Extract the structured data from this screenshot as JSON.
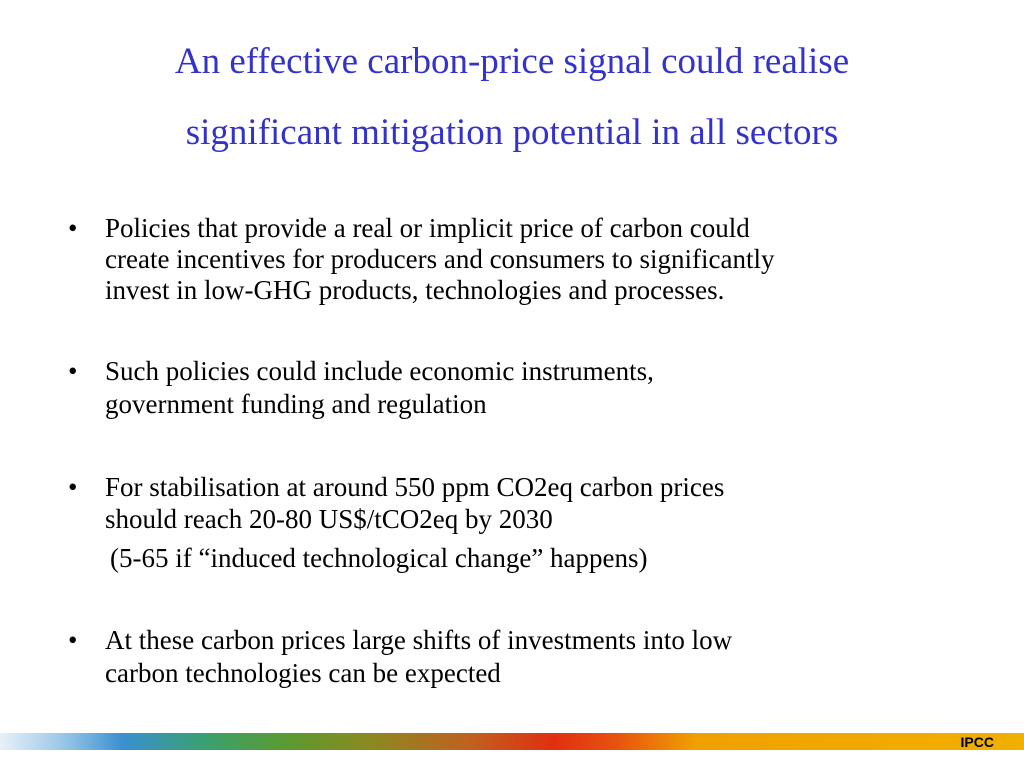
{
  "title": [
    "An effective carbon-price signal could realise",
    "significant mitigation potential in all sectors"
  ],
  "bullets": [
    {
      "lines": [
        "Policies that provide a real or implicit price of carbon could",
        "create incentives for producers and consumers to significantly",
        "invest in low-GHG products, technologies and processes."
      ]
    },
    {
      "lines": [
        "Such policies could include economic instruments,",
        "government funding and regulation"
      ]
    },
    {
      "lines": [
        "For stabilisation at around 550 ppm CO2eq carbon prices",
        "should reach 20-80 US$/tCO2eq by 2030"
      ],
      "note": "(5-65 if “induced technological change” happens)"
    },
    {
      "lines": [
        "At these carbon prices large shifts of investments into low",
        "carbon technologies can be expected"
      ]
    }
  ],
  "footer": "IPCC"
}
